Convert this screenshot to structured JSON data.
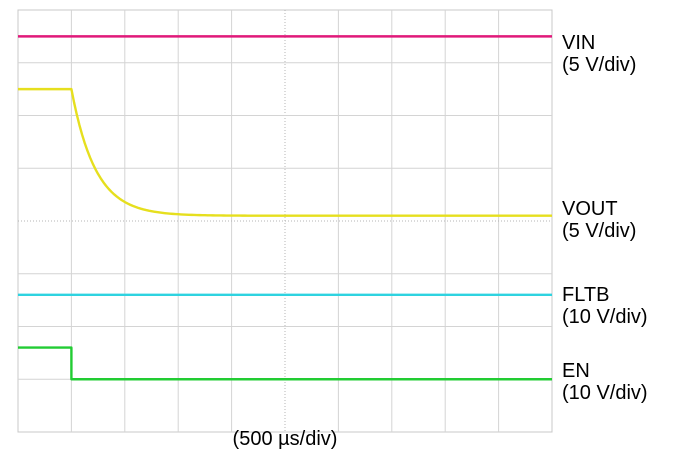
{
  "chart_data": {
    "type": "line",
    "title": "",
    "xlabel": "(500 µs/div)",
    "grid": true,
    "x_divisions": 10,
    "y_divisions": 8,
    "series": [
      {
        "name": "VIN",
        "scale": "(5 V/div)",
        "color": "#e0197a",
        "kind": "flat",
        "level_div": 0.5
      },
      {
        "name": "VOUT",
        "scale": "(5 V/div)",
        "color": "#e6df1e",
        "kind": "decay",
        "high_div": 1.5,
        "low_div": 3.9,
        "step_x_div": 1.0,
        "tau_div": 0.45
      },
      {
        "name": "FLTB",
        "scale": "(10 V/div)",
        "color": "#2ed3e0",
        "kind": "flat",
        "level_div": 5.4
      },
      {
        "name": "EN",
        "scale": "(10 V/div)",
        "color": "#22cc33",
        "kind": "step",
        "high_div": 6.4,
        "low_div": 7.0,
        "step_x_div": 1.0
      }
    ]
  }
}
